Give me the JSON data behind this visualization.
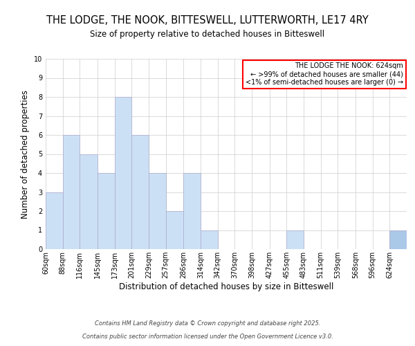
{
  "title": "THE LODGE, THE NOOK, BITTESWELL, LUTTERWORTH, LE17 4RY",
  "subtitle": "Size of property relative to detached houses in Bitteswell",
  "xlabel": "Distribution of detached houses by size in Bitteswell",
  "ylabel": "Number of detached properties",
  "bin_labels": [
    "60sqm",
    "88sqm",
    "116sqm",
    "145sqm",
    "173sqm",
    "201sqm",
    "229sqm",
    "257sqm",
    "286sqm",
    "314sqm",
    "342sqm",
    "370sqm",
    "398sqm",
    "427sqm",
    "455sqm",
    "483sqm",
    "511sqm",
    "539sqm",
    "568sqm",
    "596sqm",
    "624sqm"
  ],
  "bin_edges": [
    60,
    88,
    116,
    145,
    173,
    201,
    229,
    257,
    286,
    314,
    342,
    370,
    398,
    427,
    455,
    483,
    511,
    539,
    568,
    596,
    624,
    652
  ],
  "counts": [
    3,
    6,
    5,
    4,
    8,
    6,
    4,
    2,
    4,
    1,
    0,
    0,
    0,
    0,
    1,
    0,
    0,
    0,
    0,
    0,
    1
  ],
  "bar_color": "#cce0f5",
  "bar_edge_color": "#aaaacc",
  "highlight_bin_index": 20,
  "highlight_bar_color": "#aac8e8",
  "grid_color": "#cccccc",
  "legend_title": "THE LODGE THE NOOK: 624sqm",
  "legend_line1": "← >99% of detached houses are smaller (44)",
  "legend_line2": "<1% of semi-detached houses are larger (0) →",
  "legend_box_color": "#ff0000",
  "ylim": [
    0,
    10
  ],
  "yticks": [
    0,
    1,
    2,
    3,
    4,
    5,
    6,
    7,
    8,
    9,
    10
  ],
  "footer_line1": "Contains HM Land Registry data © Crown copyright and database right 2025.",
  "footer_line2": "Contains public sector information licensed under the Open Government Licence v3.0.",
  "title_fontsize": 10.5,
  "subtitle_fontsize": 8.5,
  "axis_label_fontsize": 8.5,
  "tick_fontsize": 7,
  "legend_fontsize": 7,
  "footer_fontsize": 6
}
